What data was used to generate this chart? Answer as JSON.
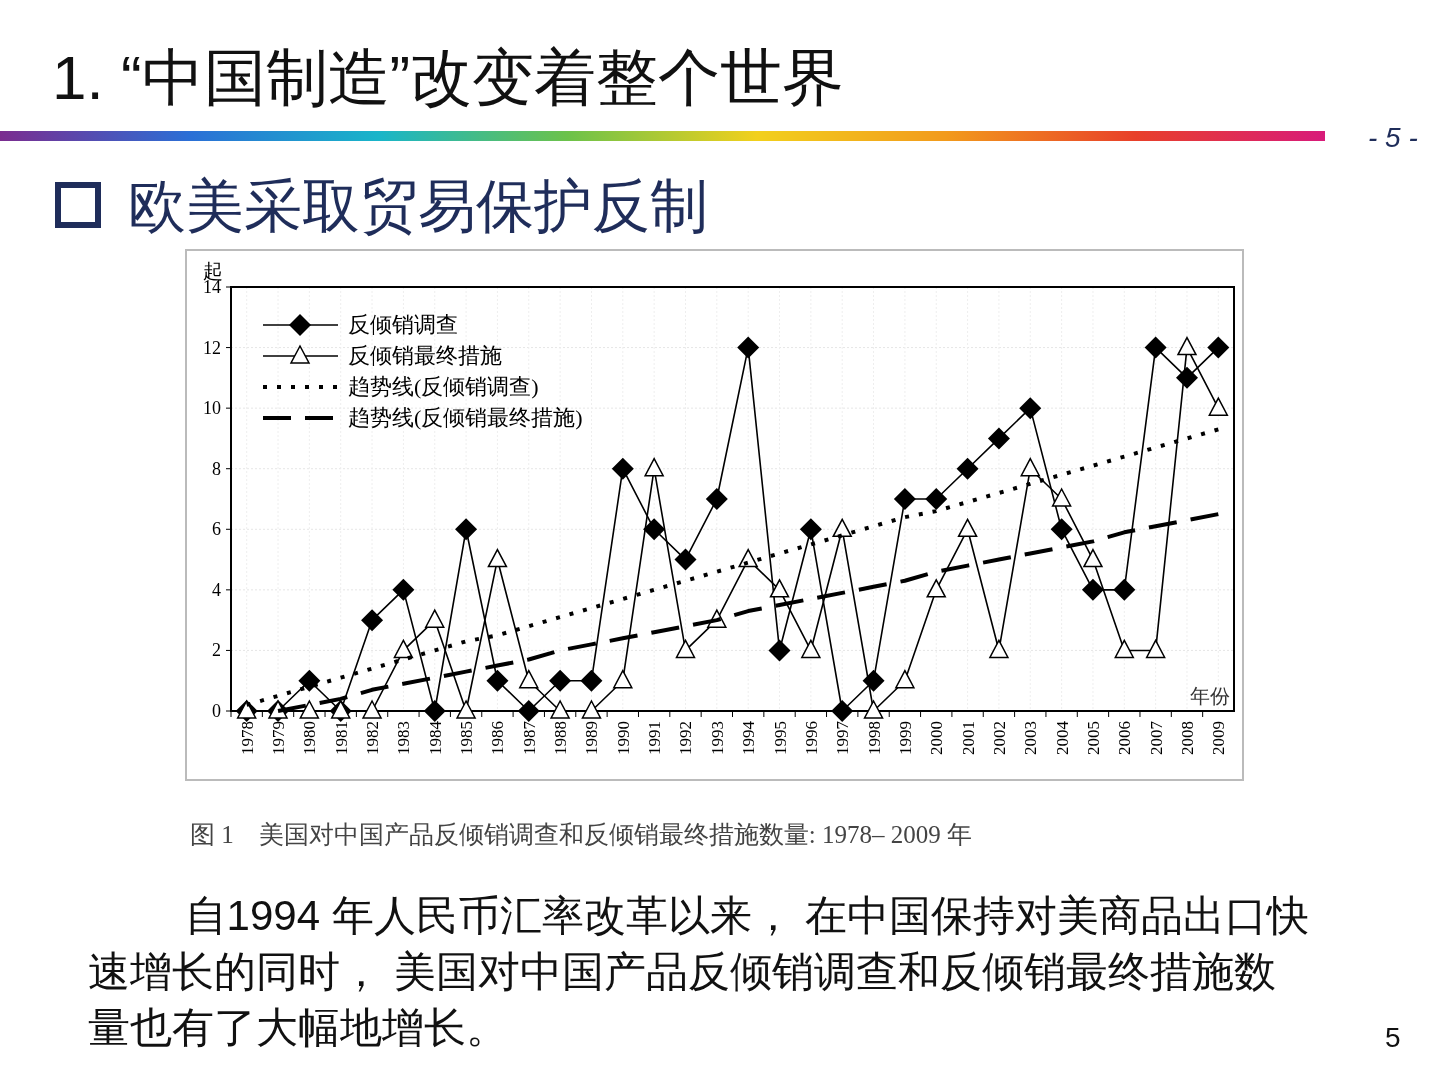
{
  "chart_data": {
    "type": "line",
    "title": "1. “中国制造”改变着整个世界",
    "subtitle": "欧美采取贸易保护反制",
    "ylabel": "起",
    "xlabel": "年份",
    "categories": [
      "1978",
      "1979",
      "1980",
      "1981",
      "1982",
      "1983",
      "1984",
      "1985",
      "1986",
      "1987",
      "1988",
      "1989",
      "1990",
      "1991",
      "1992",
      "1993",
      "1994",
      "1995",
      "1996",
      "1997",
      "1998",
      "1999",
      "2000",
      "2001",
      "2002",
      "2003",
      "2004",
      "2005",
      "2006",
      "2007",
      "2008",
      "2009"
    ],
    "series": [
      {
        "name": "反倾销调查",
        "color": "#000000",
        "marker": "diamond",
        "line_style": "solid",
        "values": [
          0,
          0,
          1,
          0,
          3,
          4,
          0,
          6,
          1,
          0,
          1,
          1,
          8,
          6,
          5,
          7,
          12,
          2,
          6,
          0,
          1,
          7,
          7,
          8,
          9,
          10,
          6,
          4,
          4,
          12,
          11,
          12
        ]
      },
      {
        "name": "反倾销最终措施",
        "color": "#000000",
        "marker": "triangle",
        "line_style": "solid",
        "values": [
          0,
          0,
          0,
          0,
          0,
          2,
          3,
          0,
          5,
          1,
          0,
          0,
          1,
          8,
          2,
          3,
          5,
          4,
          2,
          6,
          0,
          1,
          4,
          6,
          2,
          8,
          7,
          5,
          2,
          2,
          12,
          10
        ]
      },
      {
        "name": "趋势线(反倾销调查)",
        "color": "#000000",
        "line_style": "dotted",
        "values": [
          0.2,
          0.5,
          0.8,
          1.1,
          1.4,
          1.7,
          2.0,
          2.3,
          2.5,
          2.8,
          3.1,
          3.4,
          3.7,
          4.0,
          4.3,
          4.6,
          4.9,
          5.2,
          5.5,
          5.8,
          6.1,
          6.4,
          6.6,
          6.9,
          7.2,
          7.5,
          7.8,
          8.1,
          8.4,
          8.7,
          9.0,
          9.3
        ]
      },
      {
        "name": "趋势线(反倾销最终措施)",
        "color": "#000000",
        "line_style": "dashed",
        "values": [
          null,
          0,
          0.2,
          0.4,
          0.7,
          0.9,
          1.1,
          1.3,
          1.5,
          1.7,
          2.0,
          2.2,
          2.4,
          2.6,
          2.8,
          3.0,
          3.3,
          3.5,
          3.7,
          3.9,
          4.1,
          4.3,
          4.6,
          4.8,
          5.0,
          5.2,
          5.4,
          5.6,
          5.9,
          6.1,
          6.3,
          6.5
        ]
      }
    ],
    "ylim": [
      0,
      14
    ],
    "yticks": [
      0,
      2,
      4,
      6,
      8,
      10,
      12,
      14
    ],
    "grid": true,
    "legend": "top left",
    "annotations": [
      "- 5 -",
      "图 1　美国对中国产品反倾销调查和反倾销最终措施数量: 1978– 2009 年",
      "自1994 年人民币汇率改革以来， 在中国保持对美商品出口快速增长的同时， 美国对中国产品反倾销调查和反倾销最终措施数量也有了大幅地增长。",
      "5"
    ]
  }
}
